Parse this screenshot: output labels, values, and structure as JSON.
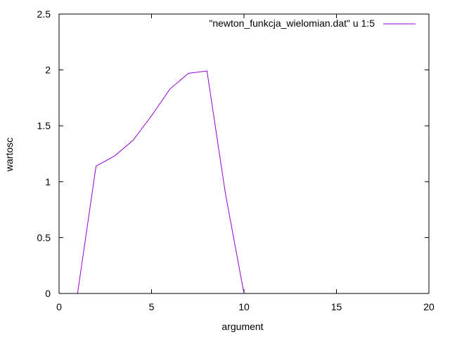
{
  "chart_data": {
    "type": "line",
    "xlabel": "argument",
    "ylabel": "wartosc",
    "xlim": [
      0,
      20
    ],
    "ylim": [
      0,
      2.5
    ],
    "xticks": [
      0,
      5,
      10,
      15,
      20
    ],
    "yticks": [
      0,
      0.5,
      1,
      1.5,
      2,
      2.5
    ],
    "xtick_labels": [
      "0",
      "5",
      "10",
      "15",
      "20"
    ],
    "ytick_labels": [
      "0",
      "0.5",
      "1",
      "1.5",
      "2",
      "2.5"
    ],
    "grid": false,
    "legend_position": "top-right",
    "series": [
      {
        "name": "\"newton_funkcja_wielomian.dat\" u 1:5",
        "color": "#9400d3",
        "x": [
          1,
          2,
          3,
          4,
          5,
          6,
          7,
          8,
          9,
          10
        ],
        "y": [
          0,
          1.14,
          1.23,
          1.37,
          1.59,
          1.83,
          1.97,
          1.99,
          0.89,
          0
        ]
      }
    ]
  }
}
